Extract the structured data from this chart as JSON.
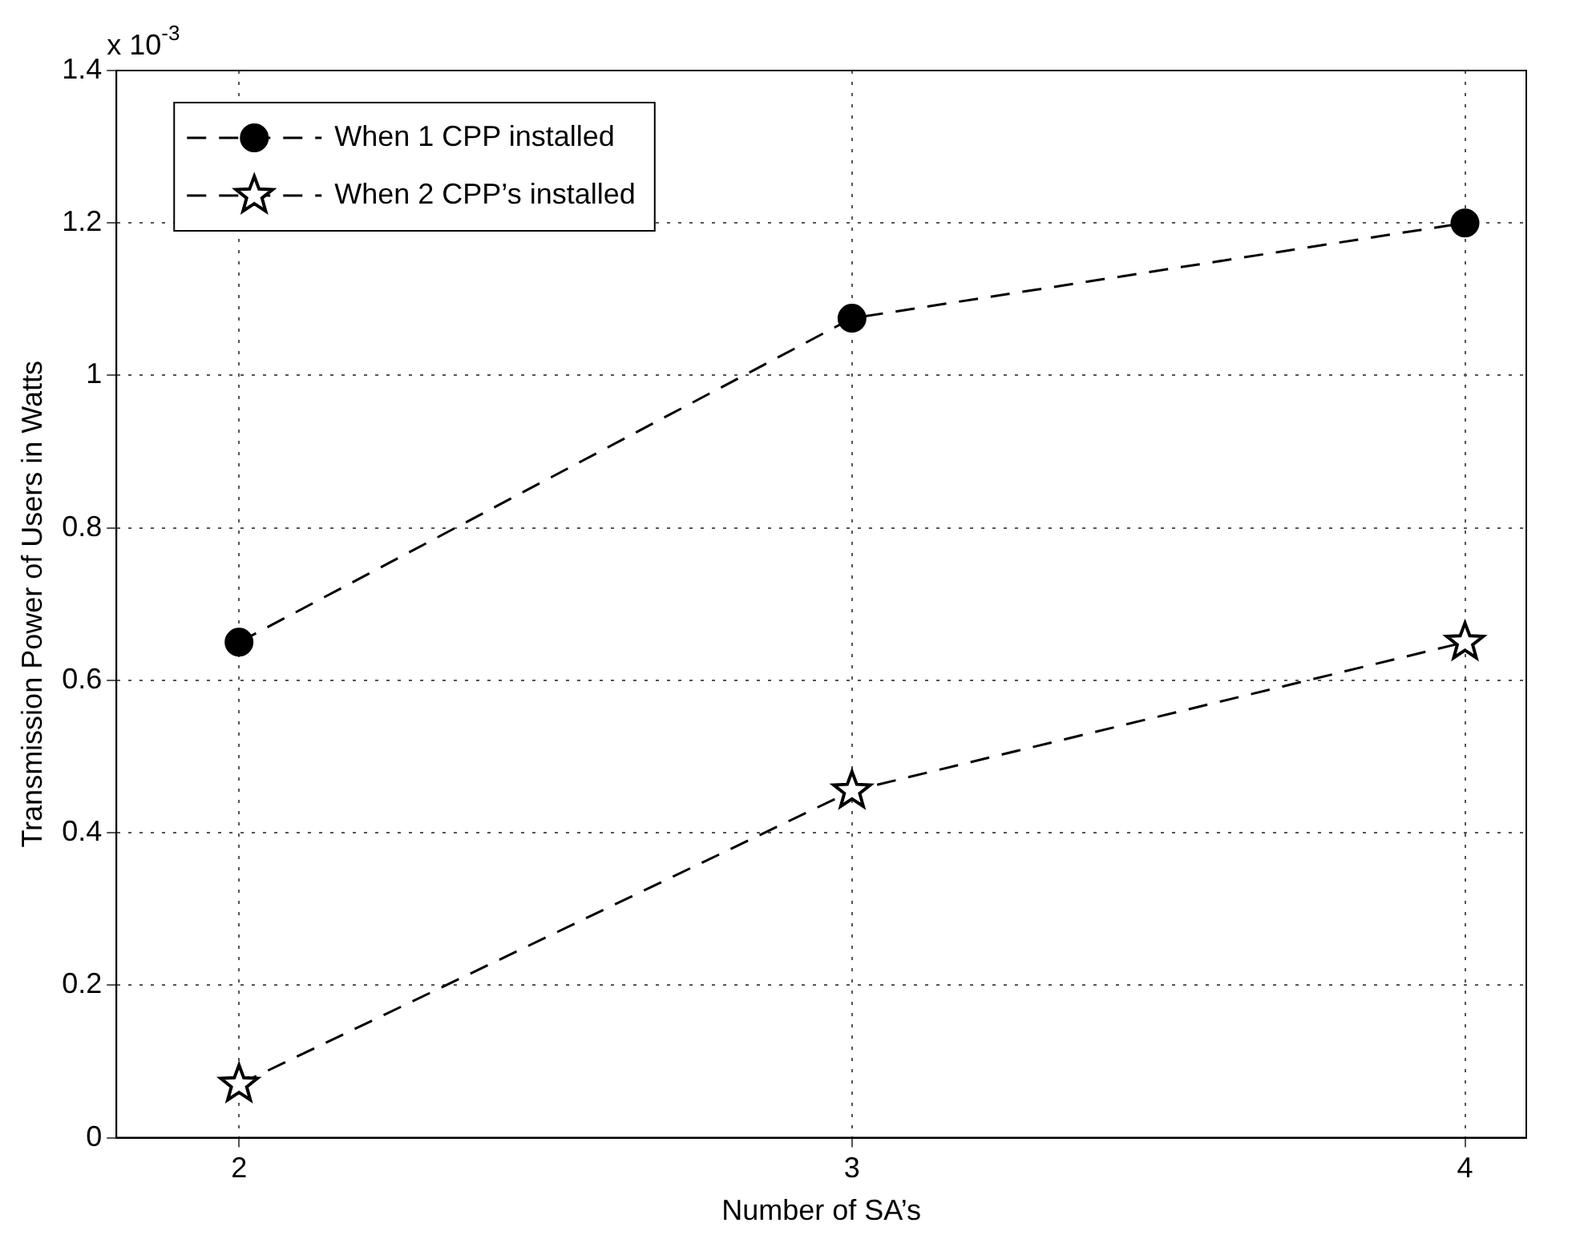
{
  "chart_data": {
    "type": "line",
    "xlabel": "Number of SA’s",
    "ylabel": "Transmission Power of Users in Watts",
    "annotations": [
      "x 10$^{-3}$"
    ],
    "x": [
      2,
      3,
      4
    ],
    "xlim": [
      1.8,
      4.1
    ],
    "xticks": [
      2,
      3,
      4
    ],
    "ylim": [
      0,
      1.4
    ],
    "yticks": [
      0,
      0.2,
      0.4,
      0.6,
      0.8,
      1,
      1.2,
      1.4
    ],
    "series": [
      {
        "name": "When 1 CPP installed",
        "color": "#000000",
        "values": [
          0.65,
          1.075,
          1.2
        ],
        "marker": "circle"
      },
      {
        "name": "When 2 CPP’s installed",
        "color": "#000000",
        "values": [
          0.07,
          0.455,
          0.65
        ],
        "marker": "star"
      }
    ],
    "grid": true,
    "legend": "top left",
    "line_style": "dashed"
  }
}
